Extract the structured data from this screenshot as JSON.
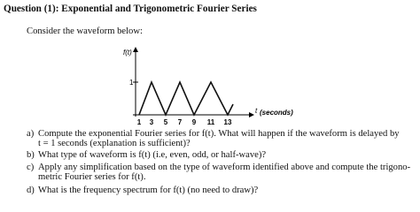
{
  "header": {
    "title": "Question (1): Exponential and Trigonometric Fourier Series"
  },
  "intro": "Consider the waveform below:",
  "figure": {
    "y_label": "f(t)",
    "y_tick": "1",
    "x_ticks": [
      "1",
      "3",
      "5",
      "7",
      "9",
      "11",
      "13"
    ],
    "x_label": "t",
    "x_unit": "(seconds)"
  },
  "questions": [
    {
      "label": "a)",
      "lines": [
        "Compute the exponential Fourier series for f(t).  What will happen if the waveform is delayed by",
        "t = 1 seconds (explanation is sufficient)?"
      ]
    },
    {
      "label": "b)",
      "lines": [
        "What type of waveform is f(t) (i.e, even, odd, or half-wave)?"
      ]
    },
    {
      "label": "c)",
      "lines": [
        "Apply any simplification based on the type of waveform identified above and compute the trigono-",
        "metric Fourier series for f(t)."
      ]
    },
    {
      "label": "d)",
      "lines": [
        "What is the frequency spectrum for f(t) (no need to draw)?"
      ]
    }
  ]
}
